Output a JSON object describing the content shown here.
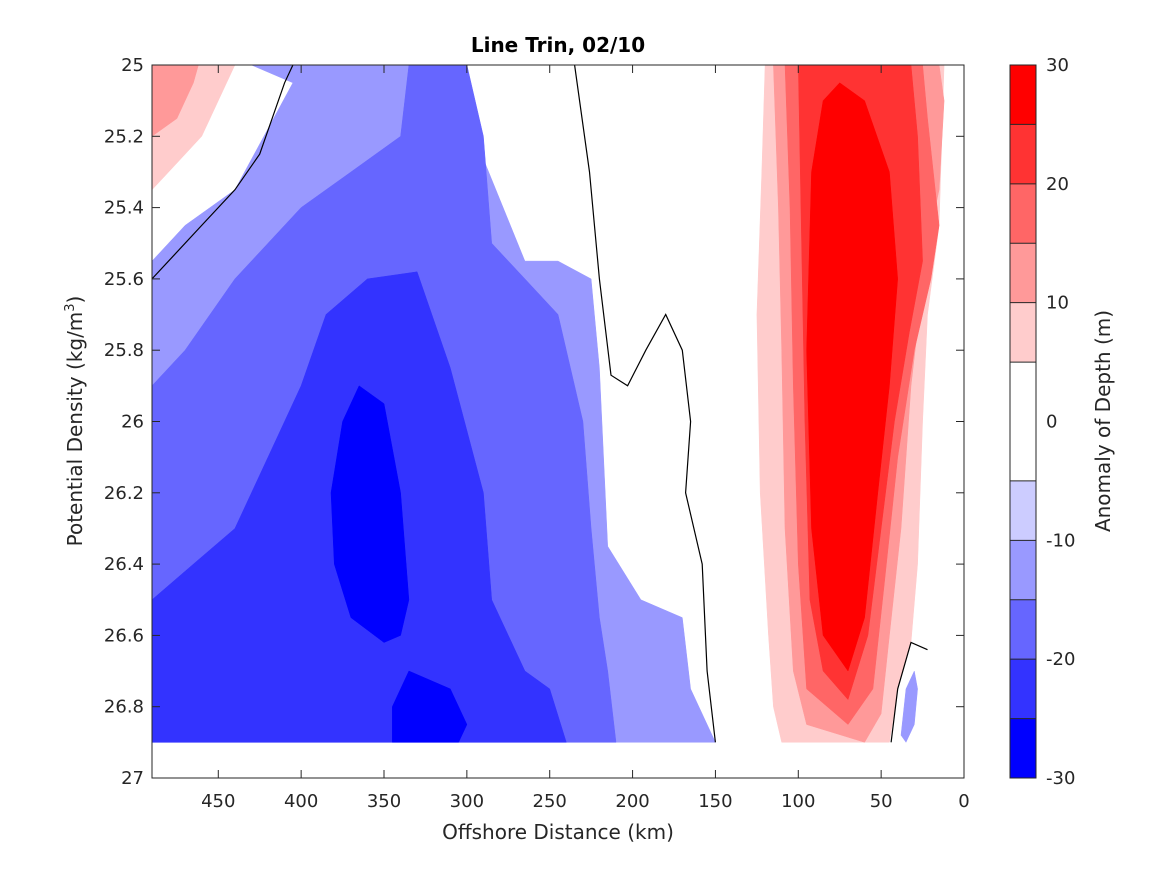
{
  "chart_data": {
    "type": "heatmap",
    "title": "Line Trin, 02/10",
    "xlabel": "Offshore Distance (km)",
    "ylabel_main": "Potential Density (kg/m",
    "ylabel_sup": "3",
    "ylabel_close": ")",
    "colorbar_label": "Anomaly of Depth (m)",
    "xlim": [
      490,
      0
    ],
    "ylim": [
      25,
      27
    ],
    "x_reversed": true,
    "y_reversed": true,
    "xticks": [
      450,
      400,
      350,
      300,
      250,
      200,
      150,
      100,
      50,
      0
    ],
    "xtick_labels": [
      "450",
      "400",
      "350",
      "300",
      "250",
      "200",
      "150",
      "100",
      "50",
      "0"
    ],
    "yticks": [
      25,
      25.2,
      25.4,
      25.6,
      25.8,
      26,
      26.2,
      26.4,
      26.6,
      26.8,
      27
    ],
    "ytick_labels": [
      "25",
      "25.2",
      "25.4",
      "25.6",
      "25.8",
      "26",
      "26.2",
      "26.4",
      "26.6",
      "26.8",
      "27"
    ],
    "colorbar_ticks": [
      30,
      20,
      10,
      0,
      -10,
      -20,
      -30
    ],
    "colorbar_tick_labels": [
      "30",
      "20",
      "10",
      "0",
      "-10",
      "-20",
      "-30"
    ],
    "colorbar_range": [
      -30,
      30
    ],
    "contour_levels": [
      {
        "lo": -30,
        "hi": -25,
        "color": "#0000ff"
      },
      {
        "lo": -25,
        "hi": -20,
        "color": "#3333ff"
      },
      {
        "lo": -20,
        "hi": -15,
        "color": "#6666ff"
      },
      {
        "lo": -15,
        "hi": -10,
        "color": "#9999ff"
      },
      {
        "lo": -10,
        "hi": -5,
        "color": "#ccccff"
      },
      {
        "lo": -5,
        "hi": 5,
        "color": "#ffffff"
      },
      {
        "lo": 5,
        "hi": 10,
        "color": "#ffcccc"
      },
      {
        "lo": 10,
        "hi": 15,
        "color": "#ff9999"
      },
      {
        "lo": 15,
        "hi": 20,
        "color": "#ff6666"
      },
      {
        "lo": 20,
        "hi": 25,
        "color": "#ff3333"
      },
      {
        "lo": 25,
        "hi": 30,
        "color": "#ff0000"
      }
    ],
    "zero_contours": [
      [
        [
          490,
          25.6
        ],
        [
          460,
          25.45
        ],
        [
          440,
          25.35
        ],
        [
          425,
          25.25
        ],
        [
          410,
          25.05
        ],
        [
          405,
          25.0
        ]
      ],
      [
        [
          235,
          25.0
        ],
        [
          226,
          25.3
        ],
        [
          220,
          25.6
        ],
        [
          213,
          25.87
        ],
        [
          203,
          25.9
        ],
        [
          192,
          25.8
        ],
        [
          180,
          25.7
        ],
        [
          170,
          25.8
        ],
        [
          165,
          26.0
        ],
        [
          168,
          26.2
        ],
        [
          158,
          26.4
        ],
        [
          155,
          26.7
        ],
        [
          150,
          26.9
        ]
      ],
      [
        [
          44,
          26.9
        ],
        [
          40,
          26.75
        ],
        [
          32,
          26.62
        ],
        [
          22,
          26.64
        ]
      ]
    ],
    "regions": [
      {
        "level": -10,
        "polygon": [
          [
            490,
            25.55
          ],
          [
            470,
            25.45
          ],
          [
            440,
            25.35
          ],
          [
            405,
            25.05
          ],
          [
            430,
            25.0
          ],
          [
            330,
            25.0
          ],
          [
            300,
            25.15
          ],
          [
            265,
            25.55
          ],
          [
            245,
            25.55
          ],
          [
            225,
            25.6
          ],
          [
            220,
            25.85
          ],
          [
            215,
            26.35
          ],
          [
            195,
            26.5
          ],
          [
            170,
            26.55
          ],
          [
            165,
            26.75
          ],
          [
            150,
            26.9
          ],
          [
            490,
            26.9
          ]
        ]
      },
      {
        "level": -15,
        "polygon": [
          [
            490,
            25.9
          ],
          [
            470,
            25.8
          ],
          [
            440,
            25.6
          ],
          [
            400,
            25.4
          ],
          [
            370,
            25.3
          ],
          [
            340,
            25.2
          ],
          [
            335,
            25.0
          ],
          [
            300,
            25.0
          ],
          [
            290,
            25.2
          ],
          [
            285,
            25.5
          ],
          [
            265,
            25.6
          ],
          [
            245,
            25.7
          ],
          [
            230,
            26.0
          ],
          [
            225,
            26.3
          ],
          [
            220,
            26.55
          ],
          [
            215,
            26.7
          ],
          [
            210,
            26.9
          ],
          [
            490,
            26.9
          ]
        ]
      },
      {
        "level": -20,
        "polygon": [
          [
            490,
            26.5
          ],
          [
            465,
            26.4
          ],
          [
            440,
            26.3
          ],
          [
            420,
            26.1
          ],
          [
            400,
            25.9
          ],
          [
            385,
            25.7
          ],
          [
            360,
            25.6
          ],
          [
            330,
            25.58
          ],
          [
            310,
            25.85
          ],
          [
            290,
            26.2
          ],
          [
            285,
            26.5
          ],
          [
            275,
            26.6
          ],
          [
            265,
            26.7
          ],
          [
            250,
            26.75
          ],
          [
            240,
            26.9
          ],
          [
            490,
            26.9
          ]
        ]
      },
      {
        "level": -25,
        "polygon": [
          [
            375,
            26.0
          ],
          [
            365,
            25.9
          ],
          [
            350,
            25.95
          ],
          [
            340,
            26.2
          ],
          [
            335,
            26.5
          ],
          [
            340,
            26.6
          ],
          [
            350,
            26.62
          ],
          [
            370,
            26.55
          ],
          [
            380,
            26.4
          ],
          [
            382,
            26.2
          ]
        ]
      },
      {
        "level": -25,
        "polygon": [
          [
            345,
            26.8
          ],
          [
            335,
            26.7
          ],
          [
            310,
            26.75
          ],
          [
            300,
            26.85
          ],
          [
            305,
            26.9
          ],
          [
            345,
            26.9
          ]
        ]
      },
      {
        "level": 5,
        "polygon": [
          [
            145,
            25.0
          ],
          [
            150,
            25.3
          ],
          [
            150,
            25.7
          ],
          [
            148,
            26.0
          ],
          [
            145,
            26.3
          ],
          [
            140,
            26.6
          ],
          [
            138,
            26.8
          ],
          [
            135,
            26.9
          ],
          [
            40,
            26.9
          ],
          [
            30,
            26.75
          ],
          [
            20,
            26.6
          ],
          [
            15,
            26.3
          ],
          [
            10,
            25.8
          ],
          [
            8,
            25.3
          ],
          [
            10,
            25.0
          ]
        ]
      },
      {
        "level": 10,
        "polygon": [
          [
            120,
            25.0
          ],
          [
            122,
            25.3
          ],
          [
            125,
            25.7
          ],
          [
            123,
            26.2
          ],
          [
            118,
            26.6
          ],
          [
            115,
            26.8
          ],
          [
            110,
            26.9
          ],
          [
            45,
            26.9
          ],
          [
            40,
            26.75
          ],
          [
            32,
            26.62
          ],
          [
            28,
            26.4
          ],
          [
            25,
            26.0
          ],
          [
            22,
            25.7
          ],
          [
            15,
            25.45
          ],
          [
            12,
            25.0
          ]
        ]
      },
      {
        "level": 15,
        "polygon": [
          [
            115,
            25.0
          ],
          [
            112,
            25.4
          ],
          [
            110,
            25.8
          ],
          [
            108,
            26.3
          ],
          [
            103,
            26.7
          ],
          [
            95,
            26.85
          ],
          [
            60,
            26.9
          ],
          [
            50,
            26.82
          ],
          [
            45,
            26.6
          ],
          [
            38,
            26.3
          ],
          [
            32,
            25.9
          ],
          [
            22,
            25.5
          ],
          [
            15,
            25.35
          ],
          [
            12,
            25.1
          ],
          [
            15,
            25.0
          ]
        ]
      },
      {
        "level": 20,
        "polygon": [
          [
            108,
            25.0
          ],
          [
            105,
            25.4
          ],
          [
            103,
            25.9
          ],
          [
            100,
            26.4
          ],
          [
            95,
            26.75
          ],
          [
            70,
            26.85
          ],
          [
            55,
            26.75
          ],
          [
            48,
            26.45
          ],
          [
            40,
            26.1
          ],
          [
            30,
            25.8
          ],
          [
            20,
            25.6
          ],
          [
            15,
            25.45
          ],
          [
            22,
            25.15
          ],
          [
            25,
            25.0
          ]
        ]
      },
      {
        "level": 25,
        "polygon": [
          [
            100,
            25.0
          ],
          [
            98,
            25.5
          ],
          [
            96,
            26.0
          ],
          [
            93,
            26.5
          ],
          [
            85,
            26.7
          ],
          [
            70,
            26.78
          ],
          [
            58,
            26.6
          ],
          [
            50,
            26.3
          ],
          [
            42,
            26.0
          ],
          [
            33,
            25.75
          ],
          [
            25,
            25.55
          ],
          [
            28,
            25.2
          ],
          [
            32,
            25.0
          ]
        ]
      },
      {
        "level": 30,
        "polygon": [
          [
            85,
            25.1
          ],
          [
            92,
            25.3
          ],
          [
            95,
            25.8
          ],
          [
            92,
            26.3
          ],
          [
            85,
            26.6
          ],
          [
            70,
            26.7
          ],
          [
            60,
            26.55
          ],
          [
            52,
            26.2
          ],
          [
            45,
            25.9
          ],
          [
            40,
            25.6
          ],
          [
            45,
            25.3
          ],
          [
            60,
            25.1
          ],
          [
            75,
            25.05
          ]
        ]
      },
      {
        "level": 10,
        "polygon": [
          [
            490,
            25.0
          ],
          [
            490,
            25.35
          ],
          [
            480,
            25.3
          ],
          [
            460,
            25.2
          ],
          [
            445,
            25.05
          ],
          [
            440,
            25.0
          ]
        ]
      },
      {
        "level": 15,
        "polygon": [
          [
            490,
            25.0
          ],
          [
            490,
            25.2
          ],
          [
            475,
            25.15
          ],
          [
            465,
            25.05
          ],
          [
            462,
            25.0
          ]
        ]
      },
      {
        "level": -10,
        "polygon": [
          [
            35,
            26.75
          ],
          [
            30,
            26.7
          ],
          [
            28,
            26.75
          ],
          [
            30,
            26.85
          ],
          [
            35,
            26.9
          ],
          [
            38,
            26.88
          ]
        ]
      }
    ]
  }
}
